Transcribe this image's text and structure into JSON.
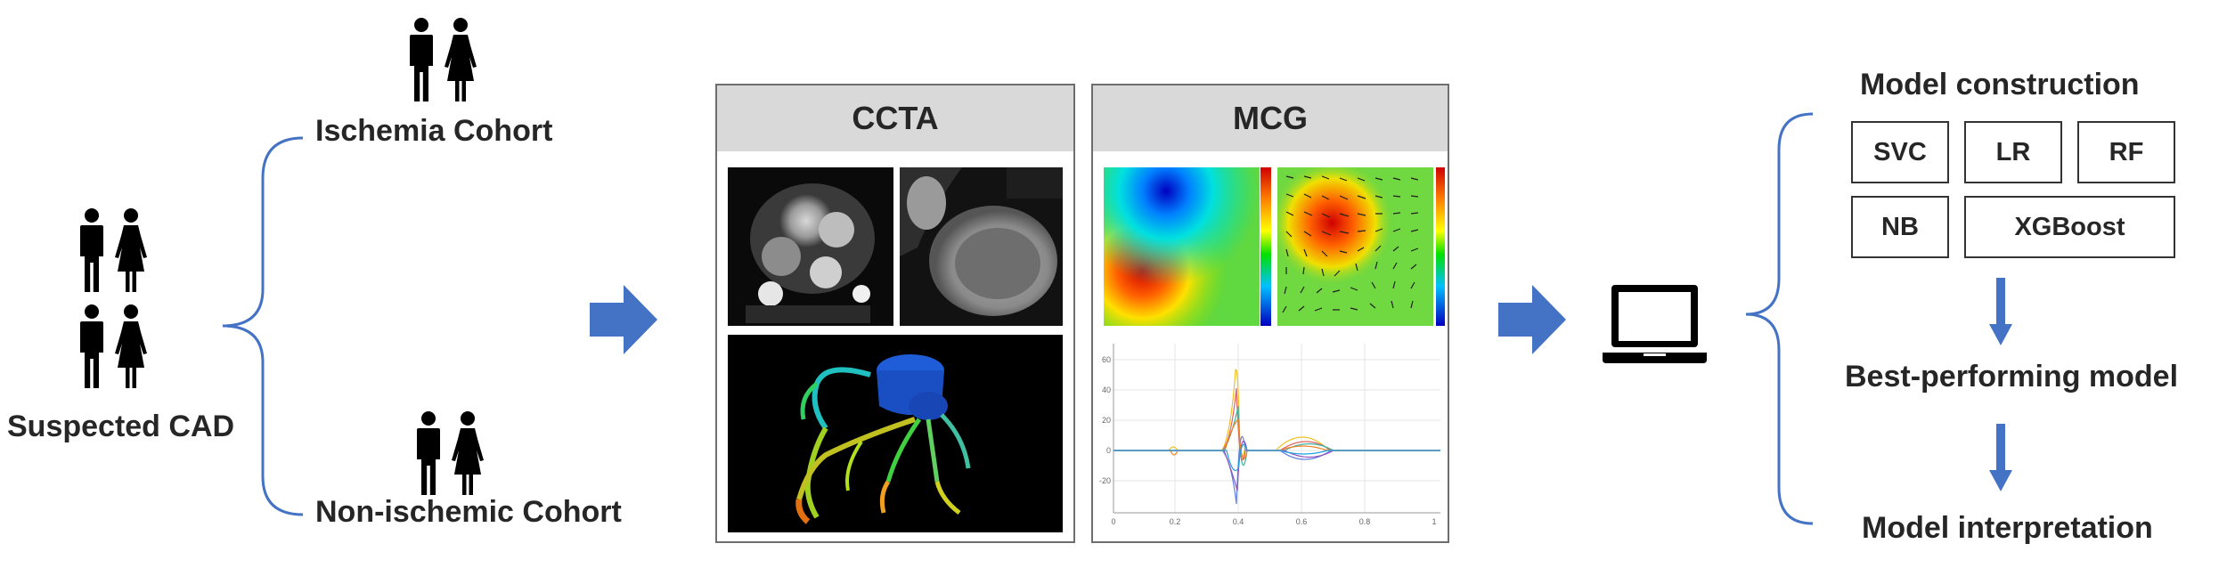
{
  "cohorts": {
    "suspected_label": "Suspected CAD",
    "ischemia_label": "Ischemia Cohort",
    "nonischemic_label": "Non-ischemic Cohort"
  },
  "modalities": {
    "ccta_title": "CCTA",
    "mcg_title": "MCG"
  },
  "mcg_plot": {
    "y_ticks": [
      "60",
      "40",
      "20",
      "0",
      "-20"
    ],
    "x_ticks": [
      "0",
      "0.2",
      "0.4",
      "0.6",
      "0.8",
      "1"
    ]
  },
  "modeling": {
    "construction_title": "Model construction",
    "models": [
      "SVC",
      "LR",
      "RF",
      "NB",
      "XGBoost"
    ],
    "best_label": "Best-performing model",
    "interpretation_label": "Model interpretation"
  },
  "colors": {
    "arrow": "#4472c4",
    "bracket": "#4472c4",
    "panel_header": "#d9d9d9"
  }
}
